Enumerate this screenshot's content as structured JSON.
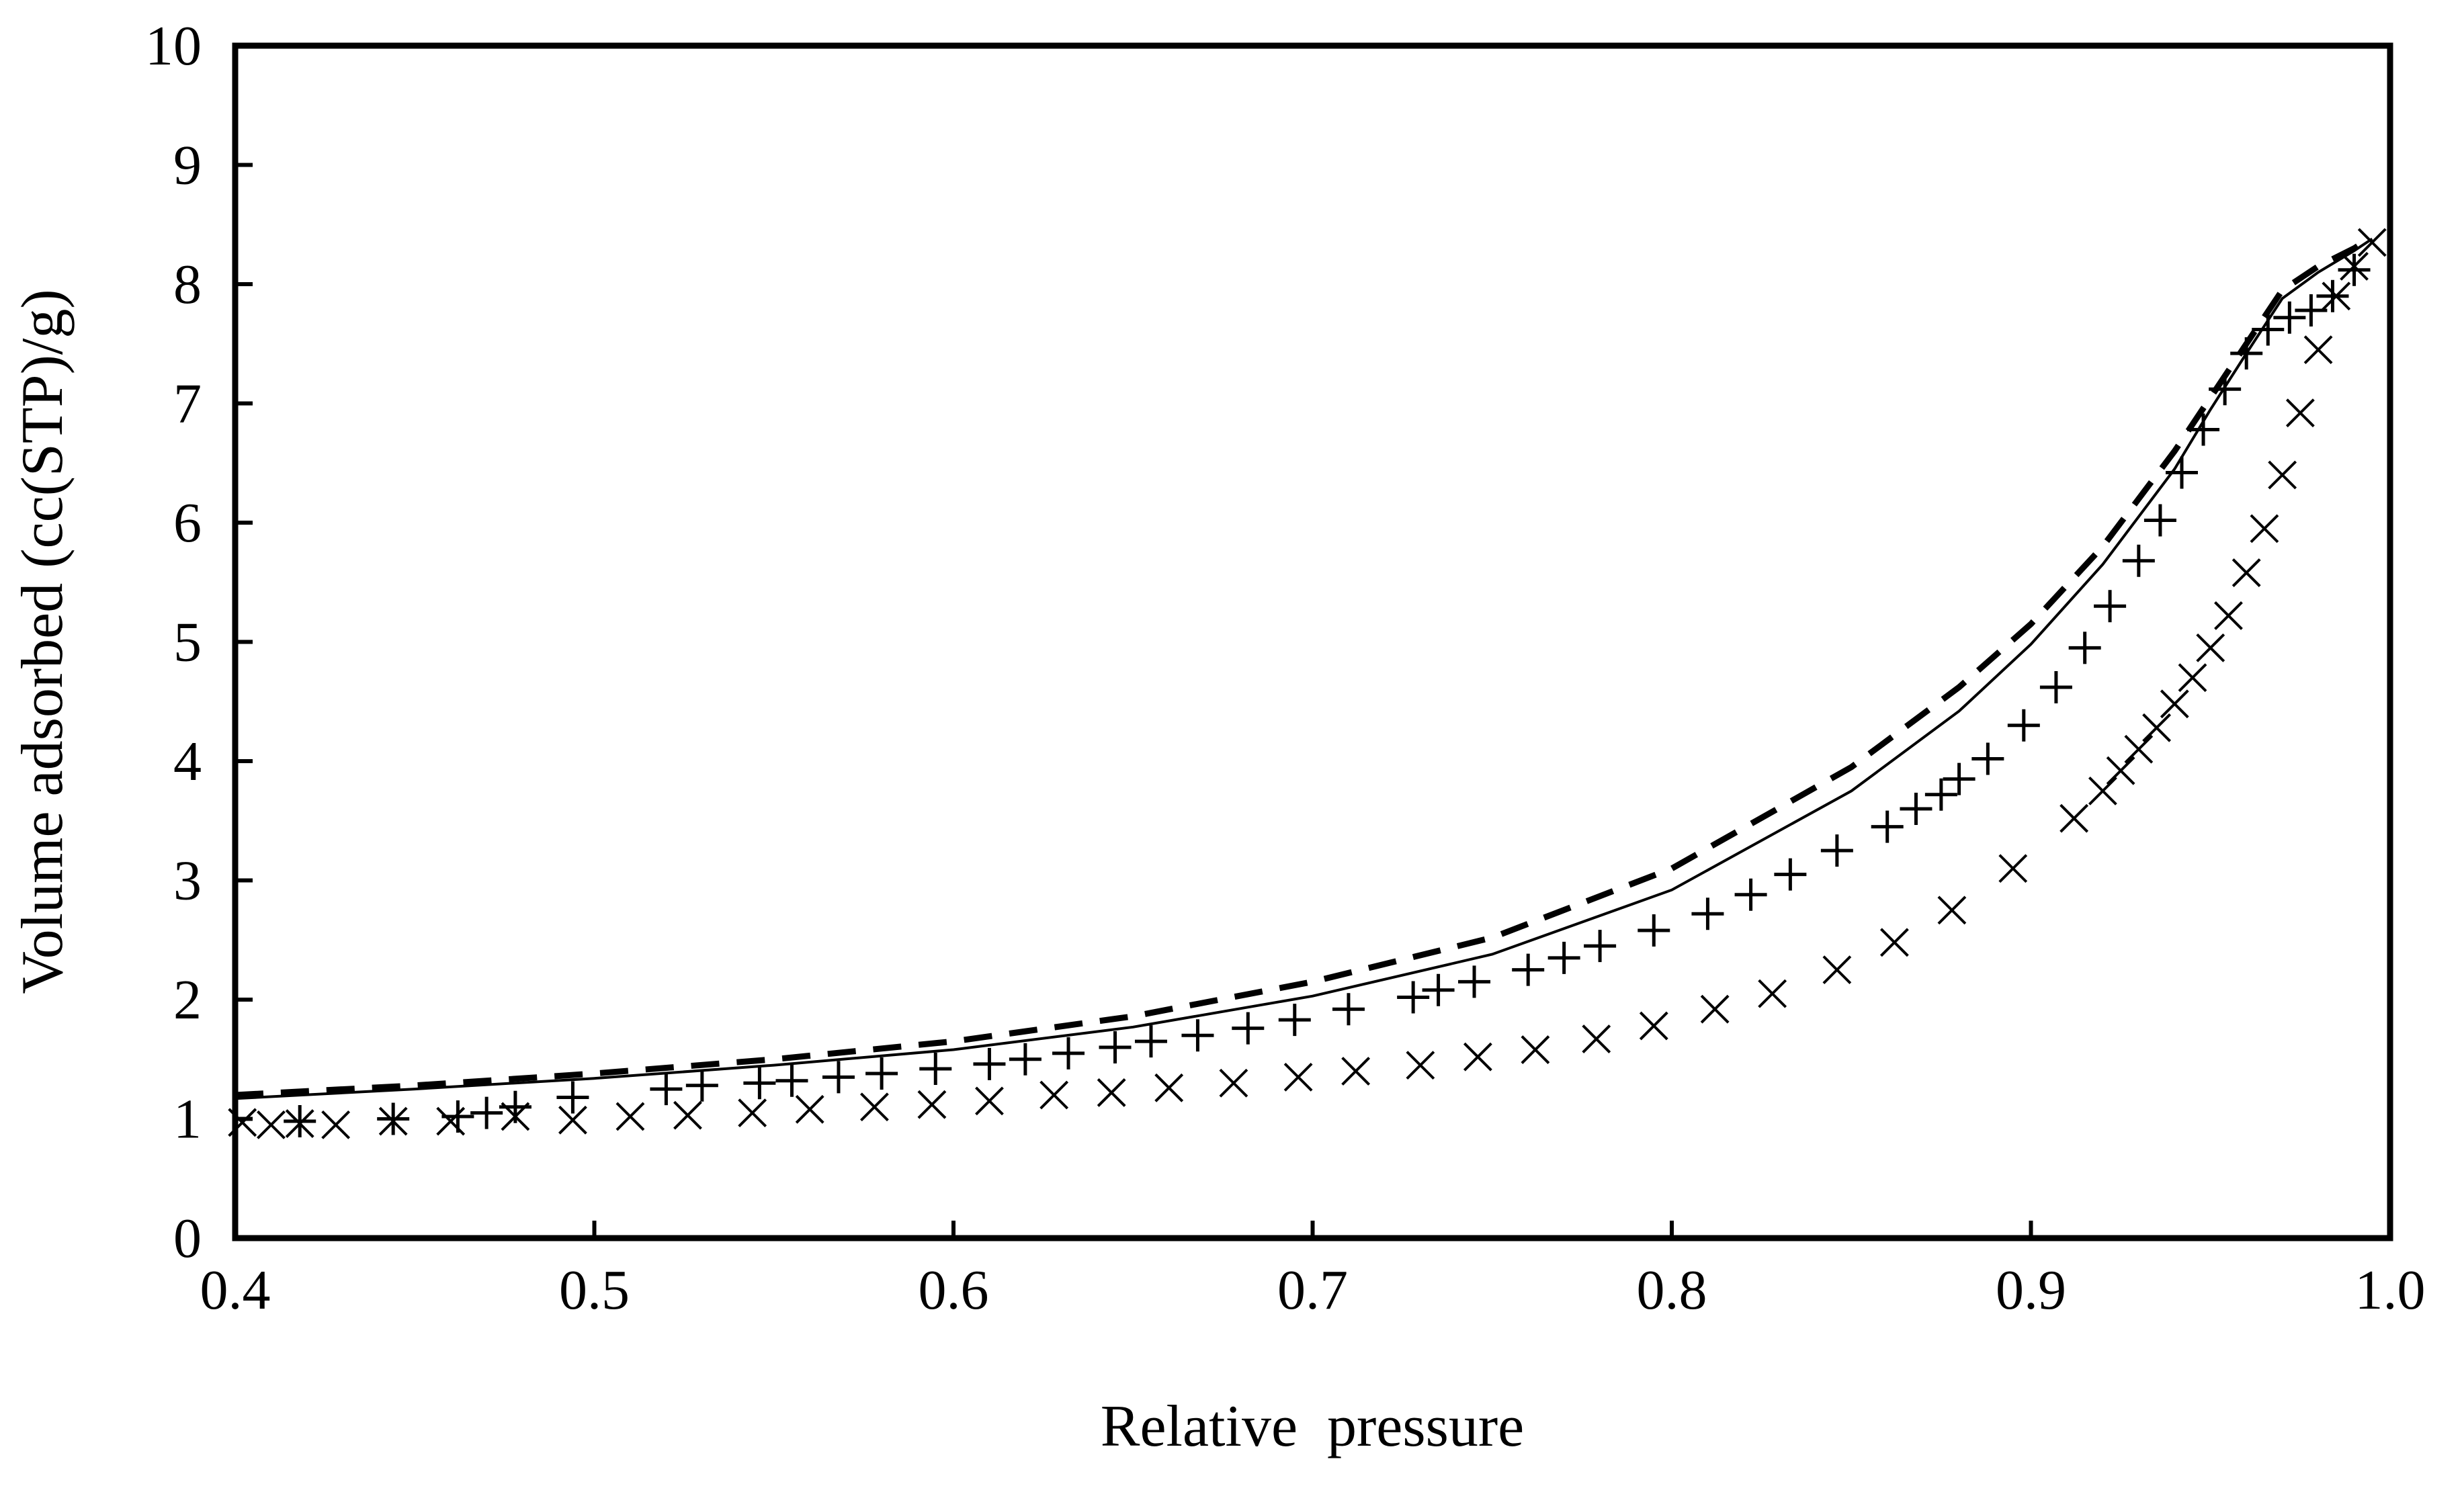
{
  "chart_data": {
    "type": "scatter",
    "title": "",
    "xlabel": "Relative  pressure",
    "ylabel": "Volume adsorbed (cc(STP)/g)",
    "xlim": [
      0.4,
      1.0
    ],
    "ylim": [
      0,
      10
    ],
    "x_ticks": [
      0.4,
      0.5,
      0.6,
      0.7,
      0.8,
      0.9,
      1.0
    ],
    "x_tick_labels": [
      "0.4",
      "0.5",
      "0.6",
      "0.7",
      "0.8",
      "0.9",
      "1.0"
    ],
    "y_ticks": [
      0,
      1,
      2,
      3,
      4,
      5,
      6,
      7,
      8,
      9,
      10
    ],
    "y_tick_labels": [
      "0",
      "1",
      "2",
      "3",
      "4",
      "5",
      "6",
      "7",
      "8",
      "9",
      "10"
    ],
    "grid": false,
    "legend": "none",
    "series": [
      {
        "name": "model-dashed",
        "style": "dashed-line",
        "color": "#000000",
        "x": [
          0.4,
          0.45,
          0.5,
          0.55,
          0.6,
          0.65,
          0.7,
          0.75,
          0.8,
          0.85,
          0.88,
          0.9,
          0.92,
          0.94,
          0.95,
          0.96,
          0.97,
          0.98,
          0.99,
          0.995
        ],
        "y": [
          1.2,
          1.28,
          1.38,
          1.5,
          1.65,
          1.86,
          2.15,
          2.52,
          3.1,
          3.95,
          4.62,
          5.15,
          5.8,
          6.6,
          7.05,
          7.5,
          7.95,
          8.15,
          8.3,
          8.4
        ]
      },
      {
        "name": "model-solid",
        "style": "solid-line",
        "color": "#000000",
        "x": [
          0.4,
          0.45,
          0.5,
          0.55,
          0.6,
          0.65,
          0.7,
          0.75,
          0.8,
          0.85,
          0.88,
          0.9,
          0.92,
          0.94,
          0.95,
          0.96,
          0.97,
          0.98,
          0.99,
          0.995
        ],
        "y": [
          1.17,
          1.25,
          1.34,
          1.45,
          1.58,
          1.77,
          2.03,
          2.38,
          2.92,
          3.75,
          4.42,
          4.98,
          5.65,
          6.45,
          6.95,
          7.42,
          7.88,
          8.1,
          8.28,
          8.38
        ]
      },
      {
        "name": "adsorption-x",
        "style": "x-marker",
        "color": "#000000",
        "x": [
          0.402,
          0.41,
          0.418,
          0.428,
          0.444,
          0.46,
          0.478,
          0.494,
          0.51,
          0.526,
          0.544,
          0.56,
          0.578,
          0.594,
          0.61,
          0.628,
          0.644,
          0.66,
          0.678,
          0.696,
          0.712,
          0.73,
          0.746,
          0.762,
          0.779,
          0.795,
          0.812,
          0.828,
          0.846,
          0.862,
          0.878,
          0.895,
          0.912,
          0.92,
          0.925,
          0.93,
          0.935,
          0.94,
          0.945,
          0.95,
          0.955,
          0.96,
          0.965,
          0.97,
          0.975,
          0.98,
          0.985,
          0.99,
          0.995
        ],
        "y": [
          0.97,
          0.95,
          0.96,
          0.95,
          0.98,
          0.98,
          1.02,
          0.99,
          1.02,
          1.03,
          1.05,
          1.08,
          1.1,
          1.12,
          1.15,
          1.2,
          1.22,
          1.26,
          1.3,
          1.35,
          1.4,
          1.45,
          1.52,
          1.58,
          1.67,
          1.78,
          1.92,
          2.05,
          2.25,
          2.48,
          2.75,
          3.1,
          3.52,
          3.75,
          3.92,
          4.1,
          4.28,
          4.48,
          4.7,
          4.95,
          5.22,
          5.58,
          5.95,
          6.4,
          6.92,
          7.45,
          7.9,
          8.15,
          8.35
        ]
      },
      {
        "name": "desorption-plus",
        "style": "plus-marker",
        "color": "#000000",
        "x": [
          0.418,
          0.444,
          0.462,
          0.47,
          0.478,
          0.494,
          0.52,
          0.53,
          0.546,
          0.555,
          0.568,
          0.58,
          0.595,
          0.61,
          0.62,
          0.632,
          0.645,
          0.655,
          0.668,
          0.682,
          0.695,
          0.71,
          0.728,
          0.735,
          0.745,
          0.76,
          0.77,
          0.78,
          0.795,
          0.81,
          0.822,
          0.833,
          0.846,
          0.86,
          0.868,
          0.875,
          0.88,
          0.888,
          0.898,
          0.907,
          0.915,
          0.922,
          0.93,
          0.936,
          0.942,
          0.948,
          0.954,
          0.96,
          0.966,
          0.972,
          0.978,
          0.984,
          0.99
        ],
        "y": [
          0.98,
          1.0,
          1.02,
          1.05,
          1.1,
          1.18,
          1.25,
          1.28,
          1.3,
          1.32,
          1.35,
          1.38,
          1.42,
          1.46,
          1.5,
          1.55,
          1.6,
          1.65,
          1.7,
          1.76,
          1.83,
          1.92,
          2.02,
          2.08,
          2.15,
          2.25,
          2.35,
          2.45,
          2.58,
          2.72,
          2.88,
          3.05,
          3.25,
          3.45,
          3.6,
          3.72,
          3.85,
          4.02,
          4.3,
          4.62,
          4.95,
          5.3,
          5.68,
          6.02,
          6.42,
          6.78,
          7.12,
          7.42,
          7.62,
          7.72,
          7.78,
          7.9,
          8.12
        ]
      }
    ]
  }
}
